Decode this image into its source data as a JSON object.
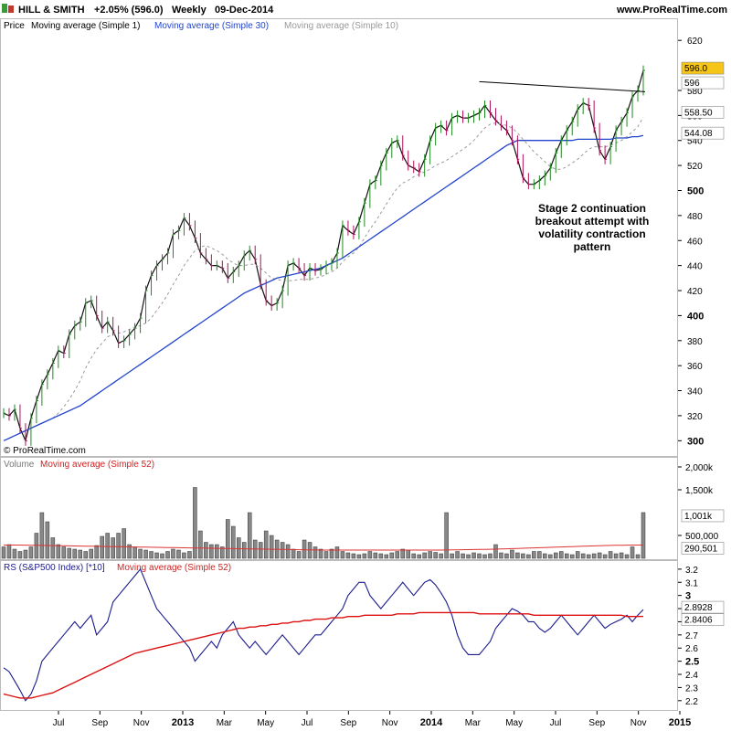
{
  "header": {
    "title": "HILL & SMITH",
    "change": "+2.05% (596.0)",
    "period": "Weekly",
    "date": "09-Dec-2014",
    "site": "www.ProRealTime.com"
  },
  "price_panel": {
    "legend": [
      "Price",
      "Moving average (Simple 1)",
      "Moving average (Simple 30)",
      "Moving average (Simple 10)"
    ],
    "copyright": "© ProRealTime.com",
    "annotation": [
      "Stage 2 continuation",
      "breakout attempt with",
      "volatility contraction",
      "pattern"
    ],
    "price_tag": "596.0",
    "ma1_tag": "596",
    "ma10_tag": "558.50",
    "ma30_tag": "544.08"
  },
  "volume_panel": {
    "legend": [
      "Volume",
      "Moving average (Simple 52)"
    ],
    "ticks": [
      "2,000k",
      "1,500k",
      "500,000"
    ],
    "vol_tag": "1,001k",
    "ma_tag": "290,501"
  },
  "rs_panel": {
    "legend": [
      "RS (S&P500 Index) [*10]",
      "Moving average (Simple 52)"
    ],
    "rs_tag": "2.8928",
    "ma_tag": "2.8406"
  },
  "colors": {
    "up": "#1f8a1f",
    "down": "#b0105a",
    "ma30": "#2244cc",
    "ma10": "#999999",
    "rs": "#1a1a8c",
    "rsma": "#dd1111",
    "volma": "#dd3333",
    "pricetag": "#f5c518"
  },
  "chart_data": [
    {
      "type": "line",
      "title": "HILL & SMITH",
      "x_ticks": [
        "Jul",
        "Sep",
        "Nov",
        "2013",
        "Mar",
        "May",
        "Jul",
        "Sep",
        "Nov",
        "2014",
        "Mar",
        "May",
        "Jul",
        "Sep",
        "Nov",
        "2015"
      ],
      "y_ticks": [
        300,
        320,
        340,
        360,
        380,
        400,
        420,
        440,
        460,
        480,
        500,
        520,
        540,
        560,
        580,
        620
      ],
      "ylim": [
        290,
        626
      ],
      "series": [
        {
          "name": "Moving average (Simple 1)",
          "values": [
            322,
            320,
            325,
            310,
            300,
            318,
            332,
            345,
            353,
            362,
            372,
            370,
            385,
            392,
            395,
            410,
            412,
            400,
            390,
            395,
            388,
            378,
            380,
            385,
            390,
            398,
            420,
            432,
            440,
            445,
            450,
            465,
            468,
            478,
            472,
            462,
            450,
            445,
            440,
            440,
            438,
            430,
            435,
            440,
            448,
            452,
            445,
            425,
            412,
            408,
            410,
            420,
            440,
            442,
            438,
            432,
            438,
            436,
            437,
            440,
            442,
            450,
            472,
            468,
            465,
            475,
            490,
            505,
            508,
            520,
            530,
            538,
            540,
            528,
            520,
            518,
            515,
            525,
            540,
            550,
            552,
            548,
            558,
            560,
            558,
            558,
            560,
            562,
            568,
            562,
            556,
            552,
            548,
            540,
            525,
            510,
            505,
            505,
            508,
            512,
            518,
            530,
            540,
            548,
            555,
            565,
            570,
            568,
            550,
            532,
            525,
            535,
            548,
            555,
            562,
            575,
            580,
            596
          ]
        },
        {
          "name": "Moving average (Simple 10)",
          "values": [
            null,
            null,
            null,
            null,
            null,
            null,
            null,
            null,
            null,
            318,
            322,
            327,
            333,
            340,
            348,
            358,
            366,
            373,
            378,
            383,
            385,
            386,
            387,
            389,
            391,
            392,
            394,
            398,
            404,
            410,
            417,
            425,
            432,
            440,
            446,
            452,
            455,
            456,
            454,
            452,
            449,
            445,
            442,
            440,
            440,
            441,
            441,
            438,
            434,
            430,
            429,
            428,
            428,
            428,
            429,
            429,
            429,
            430,
            431,
            433,
            435,
            438,
            443,
            447,
            450,
            455,
            462,
            469,
            475,
            482,
            489,
            496,
            502,
            506,
            508,
            511,
            513,
            515,
            517,
            520,
            522,
            524,
            527,
            530,
            533,
            536,
            540,
            545,
            550,
            553,
            554,
            553,
            552,
            550,
            546,
            541,
            536,
            531,
            527,
            523,
            519,
            517,
            517,
            519,
            522,
            525,
            529,
            533,
            535,
            535,
            535,
            536,
            538,
            540,
            543,
            547,
            551,
            558.5
          ]
        },
        {
          "name": "Moving average (Simple 30)",
          "values": [
            300,
            302,
            304,
            306,
            308,
            310,
            312,
            314,
            316,
            318,
            320,
            322,
            324,
            326,
            328,
            331,
            334,
            337,
            340,
            343,
            346,
            349,
            352,
            355,
            358,
            361,
            364,
            367,
            370,
            373,
            376,
            379,
            382,
            385,
            388,
            391,
            394,
            397,
            400,
            403,
            406,
            409,
            412,
            415,
            418,
            420,
            422,
            424,
            426,
            428,
            430,
            431,
            432,
            433,
            434,
            435,
            436,
            437,
            438,
            440,
            442,
            444,
            446,
            449,
            452,
            455,
            458,
            461,
            464,
            467,
            470,
            473,
            476,
            479,
            482,
            485,
            488,
            491,
            494,
            497,
            500,
            503,
            506,
            509,
            512,
            515,
            518,
            521,
            524,
            527,
            530,
            533,
            536,
            538,
            540,
            540,
            540,
            540,
            540,
            540,
            540,
            540,
            540,
            540,
            540,
            541,
            541,
            541,
            541,
            541,
            541,
            541,
            542,
            542,
            542,
            543,
            543,
            544.08
          ]
        }
      ],
      "trendline": [
        [
          518,
          578.5
        ],
        [
          118,
          587
        ]
      ]
    },
    {
      "type": "bar",
      "title": "Volume",
      "y_ticks": [
        "2,000k",
        "1,500k",
        "500,000"
      ],
      "ylim": [
        0,
        2100000
      ],
      "values": [
        250000,
        300000,
        200000,
        150000,
        180000,
        250000,
        550000,
        1000000,
        800000,
        450000,
        300000,
        250000,
        220000,
        200000,
        180000,
        150000,
        200000,
        280000,
        480000,
        550000,
        450000,
        550000,
        650000,
        300000,
        250000,
        200000,
        180000,
        150000,
        120000,
        100000,
        150000,
        200000,
        180000,
        120000,
        150000,
        1550000,
        600000,
        350000,
        300000,
        300000,
        250000,
        850000,
        700000,
        450000,
        350000,
        1000000,
        400000,
        350000,
        600000,
        500000,
        400000,
        350000,
        300000,
        200000,
        150000,
        400000,
        350000,
        250000,
        200000,
        150000,
        200000,
        250000,
        150000,
        120000,
        100000,
        80000,
        100000,
        150000,
        120000,
        100000,
        80000,
        120000,
        150000,
        200000,
        180000,
        100000,
        80000,
        120000,
        150000,
        130000,
        100000,
        1000000,
        100000,
        150000,
        100000,
        80000,
        120000,
        100000,
        80000,
        100000,
        300000,
        120000,
        100000,
        180000,
        120000,
        100000,
        80000,
        150000,
        150000,
        100000,
        80000,
        120000,
        150000,
        100000,
        80000,
        150000,
        100000,
        80000,
        100000,
        120000,
        80000,
        150000,
        100000,
        120000,
        80000,
        250000,
        80000,
        1001000
      ],
      "ma52": [
        290000,
        290000,
        290000,
        289000,
        288000,
        286000,
        284000,
        282000,
        280000,
        278000,
        276000,
        274000,
        272000,
        270000,
        268000,
        266000,
        264000,
        262000,
        260000,
        258000,
        256000,
        254000,
        252000,
        250000,
        248000,
        246000,
        244000,
        242000,
        240000,
        238000,
        236000,
        234000,
        232000,
        230000,
        228000,
        226000,
        224000,
        222000,
        220000,
        218000,
        216000,
        214000,
        212000,
        210000,
        208000,
        206000,
        204000,
        202000,
        200000,
        198000,
        196000,
        194000,
        192000,
        190000,
        188000,
        186000,
        184000,
        182000,
        180000,
        180000,
        180000,
        180000,
        180000,
        180000,
        180000,
        180000,
        180000,
        180000,
        180000,
        180000,
        180000,
        180000,
        180000,
        180000,
        180000,
        180000,
        180000,
        180000,
        180000,
        180000,
        180000,
        182000,
        184000,
        186000,
        188000,
        190000,
        192000,
        194000,
        196000,
        198000,
        200000,
        204000,
        208000,
        212000,
        216000,
        220000,
        224000,
        228000,
        232000,
        236000,
        240000,
        244000,
        248000,
        252000,
        256000,
        260000,
        264000,
        268000,
        272000,
        276000,
        280000,
        282000,
        284000,
        286000,
        288000,
        289000,
        290000,
        290501
      ],
      "last_value": "1,001k",
      "ma_last": "290,501"
    },
    {
      "type": "line",
      "title": "RS (S&P500 Index) [*10]",
      "y_ticks": [
        2.2,
        2.3,
        2.4,
        2.5,
        2.6,
        2.7,
        2.8,
        2.9,
        3.0,
        3.1,
        3.2
      ],
      "ylim": [
        2.15,
        3.22
      ],
      "series": [
        {
          "name": "RS (S&P500 Index) [*10]",
          "values": [
            2.45,
            2.42,
            2.35,
            2.28,
            2.2,
            2.25,
            2.35,
            2.5,
            2.55,
            2.6,
            2.65,
            2.7,
            2.75,
            2.8,
            2.75,
            2.8,
            2.85,
            2.7,
            2.75,
            2.8,
            2.95,
            3.0,
            3.05,
            3.1,
            3.15,
            3.2,
            3.1,
            3.0,
            2.9,
            2.85,
            2.8,
            2.75,
            2.7,
            2.65,
            2.6,
            2.5,
            2.55,
            2.6,
            2.65,
            2.6,
            2.7,
            2.75,
            2.8,
            2.7,
            2.65,
            2.6,
            2.65,
            2.6,
            2.55,
            2.6,
            2.65,
            2.7,
            2.65,
            2.6,
            2.55,
            2.6,
            2.65,
            2.7,
            2.7,
            2.75,
            2.8,
            2.85,
            2.9,
            3.0,
            3.05,
            3.1,
            3.1,
            3.0,
            2.95,
            2.9,
            2.95,
            3.0,
            3.05,
            3.1,
            3.05,
            3.0,
            3.05,
            3.1,
            3.12,
            3.08,
            3.02,
            2.95,
            2.85,
            2.7,
            2.6,
            2.55,
            2.55,
            2.55,
            2.6,
            2.65,
            2.75,
            2.8,
            2.85,
            2.9,
            2.88,
            2.85,
            2.8,
            2.8,
            2.75,
            2.72,
            2.75,
            2.8,
            2.85,
            2.8,
            2.75,
            2.7,
            2.75,
            2.8,
            2.85,
            2.8,
            2.75,
            2.78,
            2.8,
            2.82,
            2.85,
            2.8,
            2.85,
            2.8928
          ]
        },
        {
          "name": "Moving average (Simple 52)",
          "values": [
            2.25,
            2.24,
            2.23,
            2.22,
            2.22,
            2.22,
            2.23,
            2.24,
            2.25,
            2.26,
            2.28,
            2.3,
            2.32,
            2.34,
            2.36,
            2.38,
            2.4,
            2.42,
            2.44,
            2.46,
            2.48,
            2.5,
            2.52,
            2.54,
            2.56,
            2.57,
            2.58,
            2.59,
            2.6,
            2.61,
            2.62,
            2.63,
            2.64,
            2.65,
            2.66,
            2.67,
            2.68,
            2.69,
            2.7,
            2.71,
            2.72,
            2.73,
            2.74,
            2.75,
            2.75,
            2.76,
            2.76,
            2.77,
            2.77,
            2.78,
            2.78,
            2.79,
            2.79,
            2.8,
            2.8,
            2.81,
            2.81,
            2.82,
            2.82,
            2.82,
            2.83,
            2.83,
            2.83,
            2.84,
            2.84,
            2.84,
            2.85,
            2.85,
            2.85,
            2.85,
            2.85,
            2.85,
            2.86,
            2.86,
            2.86,
            2.86,
            2.87,
            2.87,
            2.87,
            2.87,
            2.87,
            2.87,
            2.87,
            2.87,
            2.87,
            2.87,
            2.87,
            2.86,
            2.86,
            2.86,
            2.86,
            2.86,
            2.86,
            2.86,
            2.86,
            2.86,
            2.86,
            2.85,
            2.85,
            2.85,
            2.85,
            2.85,
            2.85,
            2.85,
            2.85,
            2.85,
            2.85,
            2.85,
            2.85,
            2.85,
            2.85,
            2.85,
            2.85,
            2.85,
            2.84,
            2.84,
            2.84,
            2.8406
          ]
        }
      ]
    }
  ]
}
